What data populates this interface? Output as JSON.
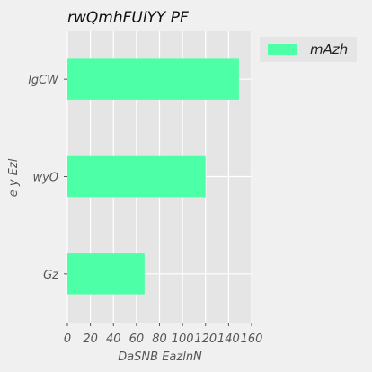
{
  "chart_data": {
    "type": "bar",
    "orientation": "horizontal",
    "title": "rwQmhFUlYY  PF",
    "xlabel": "DaSNB EazlnN",
    "ylabel": "e y Ezl",
    "categories": [
      "lgCW",
      "wyO",
      "Gz"
    ],
    "series": [
      {
        "name": "mAzh",
        "values": [
          149,
          120,
          67
        ],
        "color": "#4dffa6"
      }
    ],
    "xlim": [
      0,
      160
    ],
    "xticks": [
      0,
      20,
      40,
      60,
      80,
      100,
      120,
      140,
      160
    ],
    "grid": true,
    "legend": "top-right",
    "plot_background": "#e5e5e5"
  }
}
